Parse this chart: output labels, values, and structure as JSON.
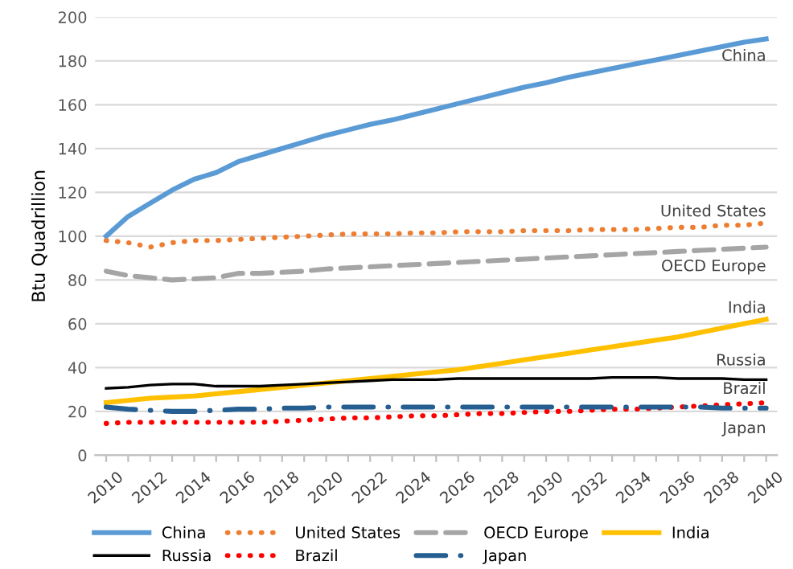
{
  "chart_data": {
    "type": "line",
    "ylabel": "Btu Quadrillion",
    "categories": [
      "2010",
      null,
      "2012",
      null,
      "2014",
      null,
      "2016",
      null,
      "2018",
      null,
      "2020",
      null,
      "2022",
      null,
      "2024",
      null,
      "2026",
      null,
      "2028",
      null,
      "2030",
      null,
      "2032",
      null,
      "2034",
      null,
      "2036",
      null,
      "2038",
      null,
      "2040"
    ],
    "ylim": [
      0,
      200
    ],
    "yticks": [
      0,
      20,
      40,
      60,
      80,
      100,
      120,
      140,
      160,
      180,
      200
    ],
    "grid": "y",
    "legend": "bottom",
    "marker": "none",
    "series": [
      {
        "name": "China",
        "color": "#5b9bd5",
        "line_style": "solid",
        "values": [
          100,
          109,
          115,
          121,
          126,
          129,
          134,
          137,
          140,
          143,
          146,
          148.5,
          151,
          153,
          155.5,
          158,
          160.5,
          163,
          165.5,
          168,
          170,
          172.5,
          174.5,
          176.5,
          178.5,
          180.5,
          182.5,
          184.5,
          186.5,
          188.5,
          190
        ]
      },
      {
        "name": "United States",
        "color": "#ed7d31",
        "line_style": "dotted",
        "values": [
          98,
          97,
          95,
          97,
          98,
          98,
          98.5,
          99,
          99.5,
          100,
          100.5,
          101,
          101,
          101,
          101.5,
          101.5,
          102,
          102,
          102,
          102.5,
          102.5,
          102.5,
          103,
          103,
          103,
          103.5,
          104,
          104,
          105,
          105,
          106
        ]
      },
      {
        "name": "OECD Europe",
        "color": "#a5a5a5",
        "line_style": "dashed",
        "values": [
          84,
          82,
          81,
          80,
          80.5,
          81,
          83,
          83,
          83.5,
          84,
          85,
          85.5,
          86,
          86.5,
          87,
          87.5,
          88,
          88.5,
          89,
          89.5,
          90,
          90.5,
          91,
          91.5,
          92,
          92.5,
          93,
          93.5,
          94,
          94.5,
          95
        ]
      },
      {
        "name": "India",
        "color": "#ffc000",
        "line_style": "solid",
        "values": [
          24,
          25,
          26,
          26.5,
          27,
          28,
          29,
          30,
          31,
          32,
          33,
          34,
          35,
          36,
          37,
          38,
          39,
          40.5,
          42,
          43.5,
          45,
          46.5,
          48,
          49.5,
          51,
          52.5,
          54,
          56,
          58,
          60,
          62
        ]
      },
      {
        "name": "Russia",
        "color": "#000000",
        "line_style": "solid",
        "values": [
          30.5,
          31,
          32,
          32.5,
          32.5,
          31.5,
          31.5,
          31.5,
          32,
          32.5,
          33,
          33.5,
          34,
          34.5,
          34.5,
          34.5,
          35,
          35,
          35,
          35,
          35,
          35,
          35,
          35.5,
          35.5,
          35.5,
          35,
          35,
          35,
          34.5,
          34.5
        ]
      },
      {
        "name": "Brazil",
        "color": "#ff0000",
        "line_style": "dotted",
        "values": [
          14.5,
          15,
          15,
          15,
          15,
          15,
          15,
          15,
          15.5,
          16,
          16.5,
          17,
          17,
          17.5,
          18,
          18,
          18.5,
          19,
          19,
          19.5,
          20,
          20,
          20.5,
          21,
          21,
          21.5,
          22,
          22.5,
          23,
          23.5,
          24
        ]
      },
      {
        "name": "Japan",
        "color": "#255e91",
        "line_style": "dashdot",
        "values": [
          22,
          21,
          20.5,
          20,
          20,
          20.5,
          21,
          21,
          21.5,
          21.5,
          22,
          22,
          22,
          22,
          22,
          22,
          22,
          22,
          22,
          22,
          22,
          22,
          22,
          22,
          22,
          22,
          22,
          22,
          21.5,
          21.5,
          21.5
        ]
      }
    ],
    "annotations": [
      "China",
      "United States",
      "OECD Europe",
      "India",
      "Russia",
      "Brazil",
      "Japan"
    ]
  }
}
